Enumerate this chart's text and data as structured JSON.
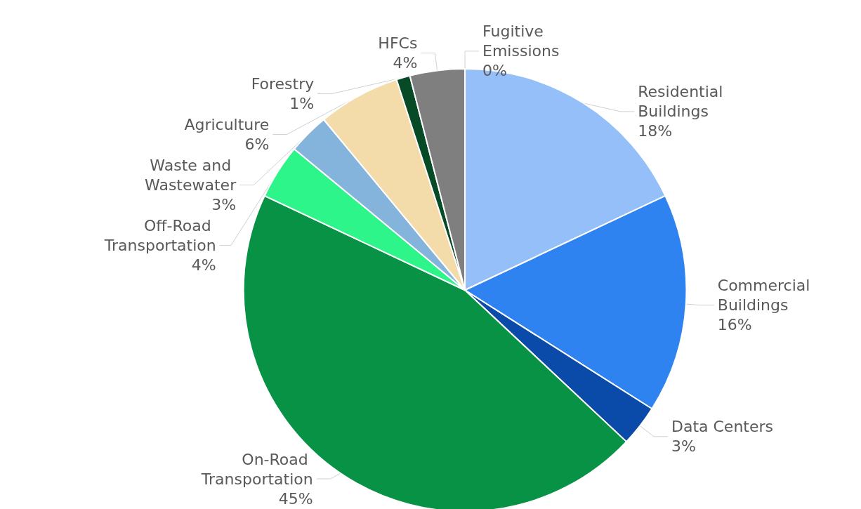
{
  "chart_data": {
    "type": "pie",
    "categories": [
      "Residential Buildings",
      "Commercial Buildings",
      "Data Centers",
      "On-Road Transportation",
      "Off-Road Transportation",
      "Waste and Wastewater",
      "Agriculture",
      "Forestry",
      "HFCs",
      "Fugitive Emissions"
    ],
    "values": [
      18,
      16,
      3,
      45,
      4,
      3,
      6,
      1,
      4,
      0
    ],
    "value_labels": [
      "18%",
      "16%",
      "3%",
      "45%",
      "4%",
      "3%",
      "6%",
      "1%",
      "4%",
      "0%"
    ],
    "colors": [
      "#94bff8",
      "#2f83f0",
      "#0a4aa8",
      "#079245",
      "#2ef589",
      "#84b4dc",
      "#f3dcaa",
      "#074a26",
      "#7f7f7f",
      "#4a6a8a"
    ]
  }
}
